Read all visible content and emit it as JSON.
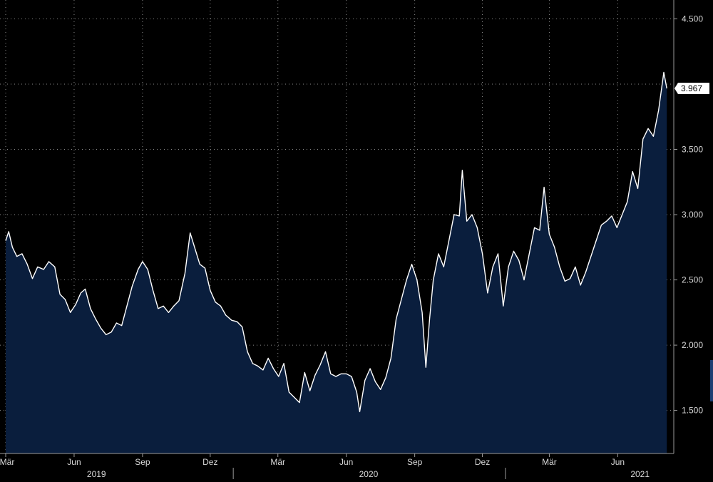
{
  "chart_data": {
    "type": "area",
    "title": "",
    "xlabel": "",
    "ylabel": "",
    "x_range": [
      "2019-03-01",
      "2021-08-01"
    ],
    "ylim": [
      1170,
      4590
    ],
    "grid": true,
    "last_value_label": "3.967",
    "colors": {
      "background": "#000000",
      "fill": "#0a1e3d",
      "line": "#ffffff",
      "grid": "#8a8a8a",
      "axis": "#9a9a9a",
      "label_bg": "#ffffff"
    },
    "y_ticks": [
      {
        "value": 1500,
        "label": "1.500"
      },
      {
        "value": 2000,
        "label": "2.000"
      },
      {
        "value": 2500,
        "label": "2.500"
      },
      {
        "value": 3000,
        "label": "3.000"
      },
      {
        "value": 3500,
        "label": "3.500"
      },
      {
        "value": 4500,
        "label": "4.500"
      }
    ],
    "x_ticks": [
      {
        "date": "2019-03-01",
        "label": "Mär"
      },
      {
        "date": "2019-06-01",
        "label": "Jun"
      },
      {
        "date": "2019-09-01",
        "label": "Sep"
      },
      {
        "date": "2019-12-01",
        "label": "Dez"
      },
      {
        "date": "2020-03-01",
        "label": "Mär"
      },
      {
        "date": "2020-06-01",
        "label": "Jun"
      },
      {
        "date": "2020-09-01",
        "label": "Sep"
      },
      {
        "date": "2020-12-01",
        "label": "Dez"
      },
      {
        "date": "2021-03-01",
        "label": "Mär"
      },
      {
        "date": "2021-06-01",
        "label": "Jun"
      }
    ],
    "year_labels": [
      {
        "date": "2019-07-01",
        "label": "2019"
      },
      {
        "date": "2020-07-01",
        "label": "2020"
      },
      {
        "date": "2021-07-01",
        "label": "2021"
      }
    ],
    "year_dividers": [
      "2020-01-01",
      "2021-01-01"
    ],
    "series": [
      {
        "points": [
          [
            "2019-03-01",
            2800
          ],
          [
            "2019-03-05",
            2870
          ],
          [
            "2019-03-10",
            2750
          ],
          [
            "2019-03-16",
            2680
          ],
          [
            "2019-03-23",
            2700
          ],
          [
            "2019-03-30",
            2620
          ],
          [
            "2019-04-06",
            2510
          ],
          [
            "2019-04-13",
            2600
          ],
          [
            "2019-04-21",
            2580
          ],
          [
            "2019-04-28",
            2640
          ],
          [
            "2019-05-06",
            2600
          ],
          [
            "2019-05-13",
            2390
          ],
          [
            "2019-05-20",
            2350
          ],
          [
            "2019-05-27",
            2250
          ],
          [
            "2019-06-03",
            2310
          ],
          [
            "2019-06-10",
            2400
          ],
          [
            "2019-06-16",
            2430
          ],
          [
            "2019-06-23",
            2280
          ],
          [
            "2019-06-30",
            2200
          ],
          [
            "2019-07-07",
            2130
          ],
          [
            "2019-07-14",
            2080
          ],
          [
            "2019-07-21",
            2100
          ],
          [
            "2019-07-28",
            2170
          ],
          [
            "2019-08-04",
            2150
          ],
          [
            "2019-08-11",
            2300
          ],
          [
            "2019-08-18",
            2450
          ],
          [
            "2019-08-26",
            2580
          ],
          [
            "2019-09-01",
            2640
          ],
          [
            "2019-09-08",
            2580
          ],
          [
            "2019-09-15",
            2420
          ],
          [
            "2019-09-22",
            2280
          ],
          [
            "2019-09-29",
            2300
          ],
          [
            "2019-10-06",
            2250
          ],
          [
            "2019-10-13",
            2300
          ],
          [
            "2019-10-20",
            2340
          ],
          [
            "2019-10-28",
            2550
          ],
          [
            "2019-11-04",
            2860
          ],
          [
            "2019-11-10",
            2750
          ],
          [
            "2019-11-17",
            2620
          ],
          [
            "2019-11-24",
            2590
          ],
          [
            "2019-12-01",
            2420
          ],
          [
            "2019-12-08",
            2330
          ],
          [
            "2019-12-15",
            2300
          ],
          [
            "2019-12-22",
            2230
          ],
          [
            "2019-12-30",
            2190
          ],
          [
            "2020-01-06",
            2180
          ],
          [
            "2020-01-13",
            2140
          ],
          [
            "2020-01-20",
            1950
          ],
          [
            "2020-01-27",
            1860
          ],
          [
            "2020-02-03",
            1840
          ],
          [
            "2020-02-10",
            1810
          ],
          [
            "2020-02-17",
            1900
          ],
          [
            "2020-02-24",
            1820
          ],
          [
            "2020-03-02",
            1760
          ],
          [
            "2020-03-09",
            1860
          ],
          [
            "2020-03-16",
            1640
          ],
          [
            "2020-03-23",
            1600
          ],
          [
            "2020-03-30",
            1560
          ],
          [
            "2020-04-06",
            1790
          ],
          [
            "2020-04-13",
            1650
          ],
          [
            "2020-04-20",
            1770
          ],
          [
            "2020-04-27",
            1850
          ],
          [
            "2020-05-04",
            1950
          ],
          [
            "2020-05-11",
            1780
          ],
          [
            "2020-05-18",
            1760
          ],
          [
            "2020-05-25",
            1780
          ],
          [
            "2020-06-01",
            1780
          ],
          [
            "2020-06-08",
            1760
          ],
          [
            "2020-06-15",
            1640
          ],
          [
            "2020-06-19",
            1490
          ],
          [
            "2020-06-26",
            1730
          ],
          [
            "2020-07-03",
            1820
          ],
          [
            "2020-07-10",
            1720
          ],
          [
            "2020-07-17",
            1660
          ],
          [
            "2020-07-24",
            1750
          ],
          [
            "2020-07-31",
            1900
          ],
          [
            "2020-08-07",
            2200
          ],
          [
            "2020-08-14",
            2350
          ],
          [
            "2020-08-21",
            2500
          ],
          [
            "2020-08-28",
            2620
          ],
          [
            "2020-09-04",
            2500
          ],
          [
            "2020-09-11",
            2250
          ],
          [
            "2020-09-16",
            1830
          ],
          [
            "2020-09-21",
            2200
          ],
          [
            "2020-09-26",
            2500
          ],
          [
            "2020-10-03",
            2700
          ],
          [
            "2020-10-10",
            2600
          ],
          [
            "2020-10-17",
            2800
          ],
          [
            "2020-10-24",
            3000
          ],
          [
            "2020-10-31",
            2990
          ],
          [
            "2020-11-04",
            3340
          ],
          [
            "2020-11-10",
            2950
          ],
          [
            "2020-11-17",
            3000
          ],
          [
            "2020-11-24",
            2900
          ],
          [
            "2020-12-01",
            2700
          ],
          [
            "2020-12-08",
            2400
          ],
          [
            "2020-12-15",
            2600
          ],
          [
            "2020-12-22",
            2700
          ],
          [
            "2020-12-29",
            2300
          ],
          [
            "2021-01-05",
            2600
          ],
          [
            "2021-01-12",
            2720
          ],
          [
            "2021-01-19",
            2650
          ],
          [
            "2021-01-26",
            2500
          ],
          [
            "2021-02-02",
            2700
          ],
          [
            "2021-02-09",
            2900
          ],
          [
            "2021-02-16",
            2880
          ],
          [
            "2021-02-22",
            3210
          ],
          [
            "2021-03-01",
            2850
          ],
          [
            "2021-03-08",
            2750
          ],
          [
            "2021-03-15",
            2600
          ],
          [
            "2021-03-22",
            2490
          ],
          [
            "2021-03-29",
            2510
          ],
          [
            "2021-04-05",
            2600
          ],
          [
            "2021-04-12",
            2460
          ],
          [
            "2021-04-19",
            2560
          ],
          [
            "2021-04-26",
            2680
          ],
          [
            "2021-05-03",
            2800
          ],
          [
            "2021-05-10",
            2920
          ],
          [
            "2021-05-17",
            2950
          ],
          [
            "2021-05-24",
            2990
          ],
          [
            "2021-05-31",
            2900
          ],
          [
            "2021-06-07",
            3000
          ],
          [
            "2021-06-14",
            3100
          ],
          [
            "2021-06-21",
            3330
          ],
          [
            "2021-06-28",
            3200
          ],
          [
            "2021-07-05",
            3580
          ],
          [
            "2021-07-12",
            3660
          ],
          [
            "2021-07-19",
            3600
          ],
          [
            "2021-07-26",
            3800
          ],
          [
            "2021-08-02",
            4090
          ],
          [
            "2021-08-06",
            3967
          ]
        ]
      }
    ]
  }
}
